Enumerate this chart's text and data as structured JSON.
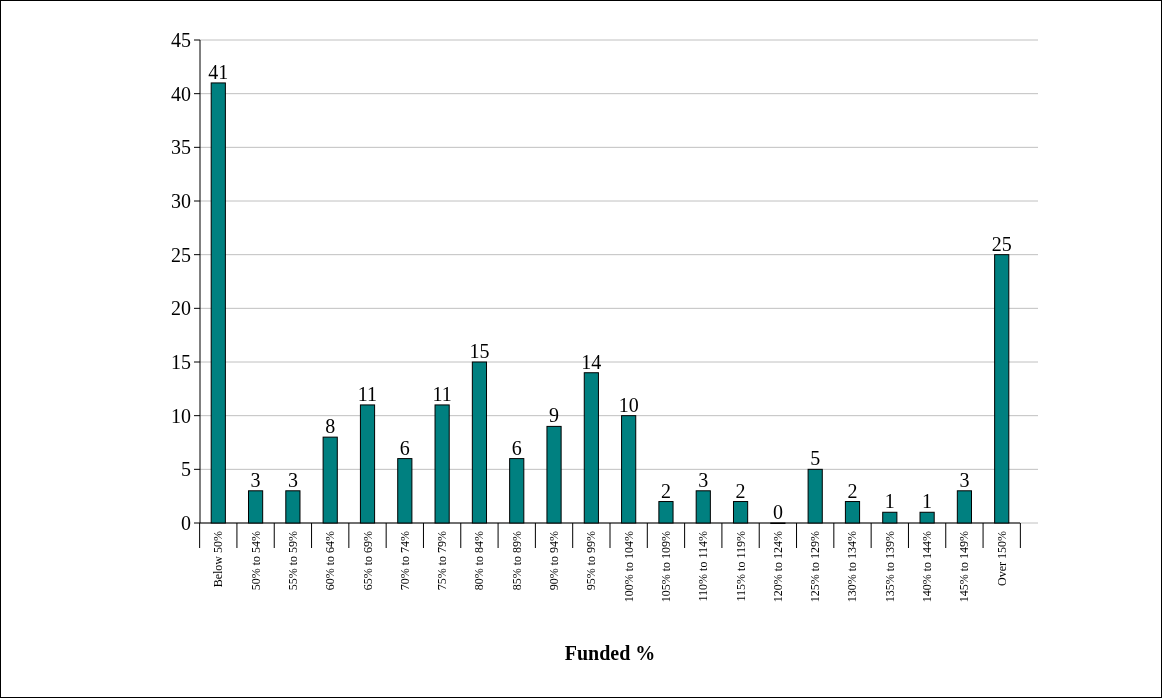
{
  "chart_data": {
    "type": "bar",
    "xlabel": "Funded %",
    "categories": [
      "Below 50%",
      "50% to 54%",
      "55% to 59%",
      "60% to 64%",
      "65% to 69%",
      "70% to 74%",
      "75% to 79%",
      "80% to 84%",
      "85% to 89%",
      "90% to 94%",
      "95% to 99%",
      "100% to 104%",
      "105% to 109%",
      "110% to 114%",
      "115% to 119%",
      "120% to 124%",
      "125% to 129%",
      "130% to 134%",
      "135% to 139%",
      "140% to 144%",
      "145% to 149%",
      "Over 150%"
    ],
    "values": [
      41,
      3,
      3,
      8,
      11,
      6,
      11,
      15,
      6,
      9,
      14,
      10,
      2,
      3,
      2,
      0,
      5,
      2,
      1,
      1,
      3,
      25
    ],
    "color": "#008080",
    "ylim": [
      0,
      45
    ],
    "yticks": [
      0,
      5,
      10,
      15,
      20,
      25,
      30,
      35,
      40,
      45
    ],
    "grid": "y",
    "data_labels": true
  }
}
